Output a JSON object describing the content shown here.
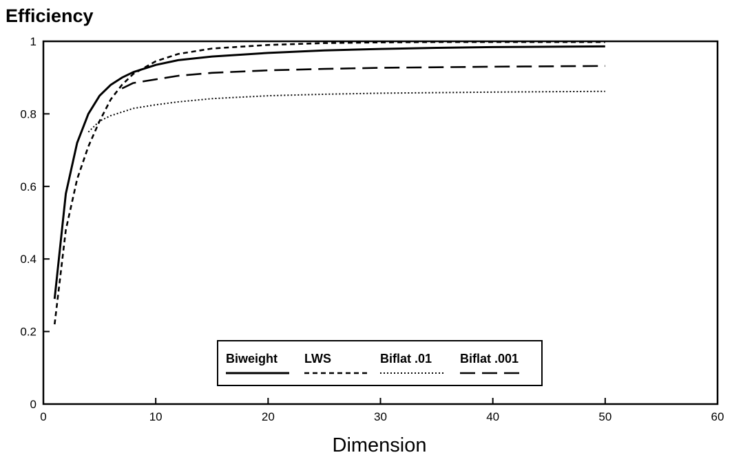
{
  "chart_data": {
    "type": "line",
    "title": "",
    "ylabel": "Efficiency",
    "xlabel": "Dimension",
    "xlim": [
      0,
      60
    ],
    "ylim": [
      0,
      1
    ],
    "x_ticks": [
      0,
      10,
      20,
      30,
      40,
      50,
      60
    ],
    "y_ticks": [
      0,
      0.2,
      0.4,
      0.6,
      0.8,
      1
    ],
    "y_tick_labels": [
      "0",
      "0.2",
      "0.4",
      "0.6",
      "0.8",
      "1"
    ],
    "grid": false,
    "legend_position": "bottom-center",
    "series": [
      {
        "name": "Biweight",
        "style": "solid",
        "x": [
          1,
          2,
          3,
          4,
          5,
          6,
          7,
          8,
          10,
          12,
          15,
          20,
          25,
          30,
          35,
          40,
          45,
          50
        ],
        "y": [
          0.29,
          0.58,
          0.72,
          0.8,
          0.85,
          0.88,
          0.9,
          0.915,
          0.935,
          0.948,
          0.958,
          0.968,
          0.975,
          0.979,
          0.982,
          0.984,
          0.985,
          0.986
        ]
      },
      {
        "name": "LWS",
        "style": "dashed",
        "x": [
          1,
          2,
          3,
          4,
          5,
          6,
          7,
          8,
          10,
          12,
          15,
          20,
          25,
          30,
          35,
          40,
          50
        ],
        "y": [
          0.22,
          0.48,
          0.62,
          0.71,
          0.78,
          0.84,
          0.88,
          0.91,
          0.945,
          0.965,
          0.98,
          0.99,
          0.995,
          0.997,
          0.998,
          0.998,
          0.998
        ]
      },
      {
        "name": "Biflat .01",
        "style": "dotted",
        "x": [
          4,
          5,
          6,
          7,
          8,
          10,
          12,
          15,
          20,
          25,
          30,
          40,
          50
        ],
        "y": [
          0.75,
          0.78,
          0.795,
          0.805,
          0.815,
          0.825,
          0.833,
          0.842,
          0.85,
          0.854,
          0.857,
          0.86,
          0.862
        ]
      },
      {
        "name": "Biflat .001",
        "style": "longdash",
        "x": [
          7,
          8,
          10,
          12,
          15,
          20,
          25,
          30,
          40,
          50
        ],
        "y": [
          0.87,
          0.885,
          0.895,
          0.905,
          0.913,
          0.92,
          0.924,
          0.927,
          0.93,
          0.932
        ]
      }
    ]
  }
}
